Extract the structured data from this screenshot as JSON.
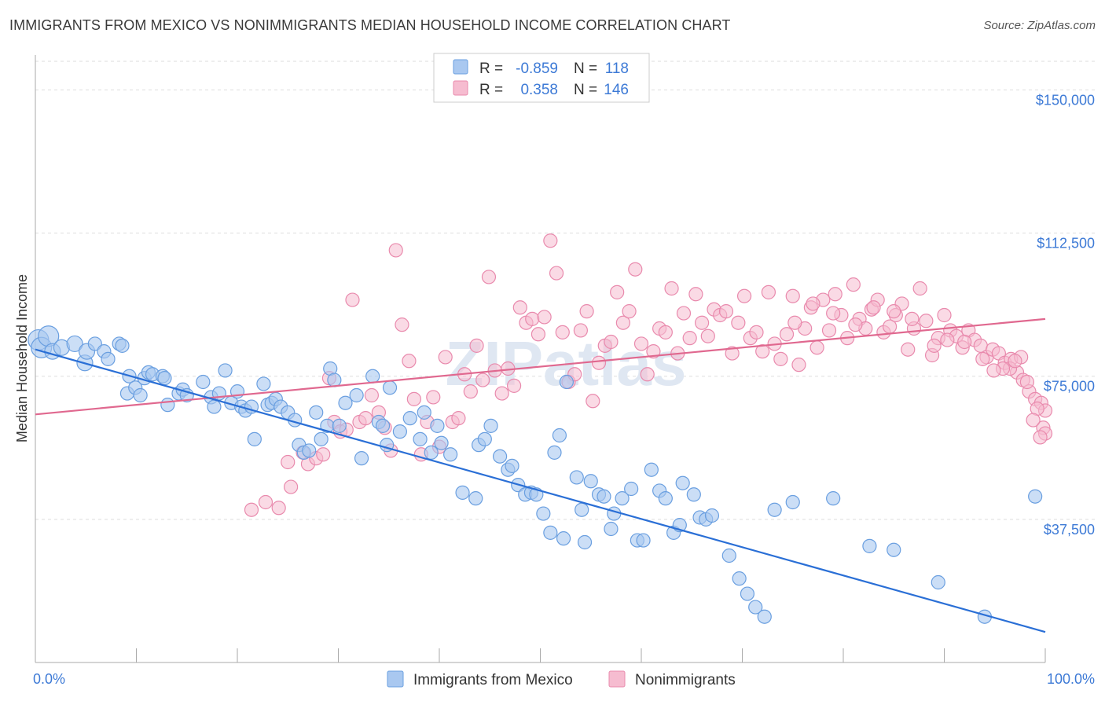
{
  "title": "IMMIGRANTS FROM MEXICO VS NONIMMIGRANTS MEDIAN HOUSEHOLD INCOME CORRELATION CHART",
  "source": "Source: ZipAtlas.com",
  "watermark": "ZIPatlas",
  "colors": {
    "blue_fill": "#a9c8f0",
    "blue_stroke": "#6a9fe0",
    "blue_line": "#2a6fd6",
    "pink_fill": "#f6bcd0",
    "pink_stroke": "#e98aad",
    "pink_line": "#e0688f",
    "tick_text": "#3d7ad6",
    "grid": "#dddddd"
  },
  "legend": {
    "rows": [
      {
        "r_label": "R =",
        "r_value": "-0.859",
        "n_label": "N =",
        "n_value": "118"
      },
      {
        "r_label": "R =",
        "r_value": "0.358",
        "n_label": "N =",
        "n_value": "146"
      }
    ]
  },
  "chart_data": {
    "type": "scatter",
    "title": "IMMIGRANTS FROM MEXICO VS NONIMMIGRANTS MEDIAN HOUSEHOLD INCOME CORRELATION CHART",
    "xlabel": "",
    "ylabel": "Median Household Income",
    "xlim": [
      0,
      100
    ],
    "ylim": [
      0,
      157500
    ],
    "x_tick_labels": [
      "0.0%",
      "100.0%"
    ],
    "y_ticks": [
      37500,
      75000,
      112500,
      150000
    ],
    "y_tick_labels": [
      "$37,500",
      "$75,000",
      "$112,500",
      "$150,000"
    ],
    "grid": true,
    "legend_position": "bottom",
    "series": [
      {
        "name": "Immigrants from Mexico",
        "color": "#a9c8f0",
        "trend": {
          "x": [
            0,
            100
          ],
          "y": [
            82000,
            8000
          ]
        },
        "points": [
          [
            0.3,
            84.5
          ],
          [
            0.6,
            82.5
          ],
          [
            1.3,
            85.5
          ],
          [
            1.7,
            81.5
          ],
          [
            2.6,
            82.5
          ],
          [
            3.9,
            83.5
          ],
          [
            4.9,
            78.5
          ],
          [
            5.1,
            81.5
          ],
          [
            5.9,
            83.5
          ],
          [
            6.8,
            81.5
          ],
          [
            7.2,
            79.5
          ],
          [
            8.3,
            83.5
          ],
          [
            8.6,
            83.0
          ],
          [
            9.1,
            70.5
          ],
          [
            9.3,
            75.0
          ],
          [
            9.9,
            72.0
          ],
          [
            10.4,
            70.0
          ],
          [
            10.8,
            74.5
          ],
          [
            11.2,
            76.0
          ],
          [
            11.6,
            75.5
          ],
          [
            12.6,
            75.0
          ],
          [
            12.8,
            74.5
          ],
          [
            13.1,
            67.5
          ],
          [
            14.2,
            70.5
          ],
          [
            14.6,
            71.5
          ],
          [
            15.0,
            70.0
          ],
          [
            16.6,
            73.5
          ],
          [
            17.4,
            69.5
          ],
          [
            17.7,
            67.0
          ],
          [
            18.2,
            70.5
          ],
          [
            18.8,
            76.5
          ],
          [
            19.4,
            68.0
          ],
          [
            20.0,
            71.0
          ],
          [
            20.4,
            67.0
          ],
          [
            20.8,
            66.0
          ],
          [
            21.4,
            67.0
          ],
          [
            21.7,
            58.5
          ],
          [
            22.6,
            73.0
          ],
          [
            23.0,
            67.5
          ],
          [
            23.4,
            68.0
          ],
          [
            23.8,
            69.0
          ],
          [
            24.3,
            67.0
          ],
          [
            25.0,
            65.5
          ],
          [
            25.7,
            63.5
          ],
          [
            26.1,
            57.0
          ],
          [
            26.6,
            55.0
          ],
          [
            27.1,
            55.5
          ],
          [
            27.8,
            65.5
          ],
          [
            28.3,
            58.5
          ],
          [
            28.9,
            62.0
          ],
          [
            29.2,
            77.0
          ],
          [
            29.6,
            74.0
          ],
          [
            30.1,
            62.0
          ],
          [
            30.7,
            68.0
          ],
          [
            31.8,
            70.0
          ],
          [
            32.3,
            53.5
          ],
          [
            33.4,
            75.0
          ],
          [
            34.0,
            63.0
          ],
          [
            34.4,
            62.0
          ],
          [
            34.8,
            57.0
          ],
          [
            35.1,
            72.0
          ],
          [
            36.1,
            60.5
          ],
          [
            37.1,
            64.0
          ],
          [
            38.1,
            58.5
          ],
          [
            38.5,
            65.5
          ],
          [
            39.2,
            55.0
          ],
          [
            39.8,
            62.0
          ],
          [
            40.2,
            57.5
          ],
          [
            41.1,
            54.5
          ],
          [
            42.3,
            44.5
          ],
          [
            43.6,
            43.0
          ],
          [
            43.9,
            57.0
          ],
          [
            44.5,
            58.5
          ],
          [
            45.1,
            62.0
          ],
          [
            46.0,
            54.0
          ],
          [
            46.8,
            50.5
          ],
          [
            47.2,
            51.5
          ],
          [
            47.8,
            46.5
          ],
          [
            48.5,
            44.0
          ],
          [
            49.1,
            44.5
          ],
          [
            49.6,
            44.0
          ],
          [
            50.3,
            39.0
          ],
          [
            51.0,
            34.0
          ],
          [
            51.4,
            55.0
          ],
          [
            51.9,
            59.5
          ],
          [
            52.3,
            32.5
          ],
          [
            52.6,
            73.5
          ],
          [
            53.6,
            48.5
          ],
          [
            54.1,
            40.0
          ],
          [
            54.4,
            31.5
          ],
          [
            55.0,
            47.5
          ],
          [
            55.8,
            44.0
          ],
          [
            56.3,
            43.5
          ],
          [
            57.0,
            35.0
          ],
          [
            57.3,
            39.0
          ],
          [
            58.1,
            43.0
          ],
          [
            59.0,
            45.5
          ],
          [
            59.6,
            32.0
          ],
          [
            60.2,
            32.0
          ],
          [
            61.0,
            50.5
          ],
          [
            61.8,
            45.0
          ],
          [
            62.4,
            43.0
          ],
          [
            63.2,
            34.0
          ],
          [
            63.8,
            36.0
          ],
          [
            64.1,
            47.0
          ],
          [
            65.2,
            44.0
          ],
          [
            65.8,
            38.0
          ],
          [
            66.4,
            37.5
          ],
          [
            67.0,
            38.5
          ],
          [
            68.7,
            28.0
          ],
          [
            69.7,
            22.0
          ],
          [
            70.5,
            18.0
          ],
          [
            71.3,
            14.5
          ],
          [
            72.2,
            12.0
          ],
          [
            73.2,
            40.0
          ],
          [
            75.0,
            42.0
          ],
          [
            79.0,
            43.0
          ],
          [
            82.6,
            30.5
          ],
          [
            85.0,
            29.5
          ],
          [
            89.4,
            21.0
          ],
          [
            94.0,
            12.0
          ],
          [
            99.0,
            43.5
          ]
        ]
      },
      {
        "name": "Nonimmigrants",
        "color": "#f6bcd0",
        "trend": {
          "x": [
            0,
            100
          ],
          "y": [
            65000,
            90000
          ]
        },
        "points": [
          [
            21.4,
            40.0
          ],
          [
            22.8,
            42.0
          ],
          [
            24.1,
            40.5
          ],
          [
            25.0,
            52.5
          ],
          [
            25.3,
            46.0
          ],
          [
            26.5,
            55.0
          ],
          [
            27.0,
            52.0
          ],
          [
            27.8,
            53.5
          ],
          [
            28.5,
            54.5
          ],
          [
            29.1,
            74.5
          ],
          [
            29.6,
            63.0
          ],
          [
            30.2,
            60.5
          ],
          [
            30.8,
            61.0
          ],
          [
            31.4,
            95.0
          ],
          [
            32.1,
            63.0
          ],
          [
            32.7,
            64.0
          ],
          [
            33.3,
            70.0
          ],
          [
            34.0,
            65.5
          ],
          [
            34.6,
            61.5
          ],
          [
            35.2,
            55.5
          ],
          [
            35.7,
            108.0
          ],
          [
            36.3,
            88.5
          ],
          [
            37.0,
            79.0
          ],
          [
            37.5,
            69.0
          ],
          [
            38.2,
            54.5
          ],
          [
            38.8,
            63.0
          ],
          [
            39.4,
            69.5
          ],
          [
            40.0,
            56.5
          ],
          [
            40.6,
            80.0
          ],
          [
            41.3,
            63.0
          ],
          [
            41.9,
            64.0
          ],
          [
            42.5,
            75.5
          ],
          [
            43.1,
            71.0
          ],
          [
            43.7,
            83.0
          ],
          [
            44.3,
            74.0
          ],
          [
            44.9,
            101.0
          ],
          [
            45.5,
            76.5
          ],
          [
            46.2,
            70.5
          ],
          [
            46.8,
            77.0
          ],
          [
            47.4,
            72.5
          ],
          [
            48.0,
            93.0
          ],
          [
            48.6,
            89.0
          ],
          [
            49.2,
            90.0
          ],
          [
            49.8,
            86.0
          ],
          [
            50.4,
            90.5
          ],
          [
            51.0,
            110.5
          ],
          [
            51.6,
            102.0
          ],
          [
            52.2,
            86.5
          ],
          [
            52.8,
            73.5
          ],
          [
            53.4,
            75.5
          ],
          [
            54.0,
            87.0
          ],
          [
            54.6,
            92.0
          ],
          [
            55.2,
            68.5
          ],
          [
            55.8,
            78.5
          ],
          [
            56.4,
            83.0
          ],
          [
            57.0,
            84.0
          ],
          [
            57.6,
            97.0
          ],
          [
            58.2,
            89.0
          ],
          [
            58.8,
            92.0
          ],
          [
            59.4,
            103.0
          ],
          [
            60.0,
            83.5
          ],
          [
            60.6,
            75.5
          ],
          [
            61.2,
            81.5
          ],
          [
            61.8,
            87.5
          ],
          [
            62.4,
            86.5
          ],
          [
            63.0,
            98.0
          ],
          [
            63.6,
            81.0
          ],
          [
            64.2,
            91.5
          ],
          [
            64.8,
            85.0
          ],
          [
            65.4,
            96.5
          ],
          [
            66.0,
            89.0
          ],
          [
            66.6,
            85.5
          ],
          [
            67.2,
            92.5
          ],
          [
            67.8,
            91.0
          ],
          [
            68.4,
            92.0
          ],
          [
            69.0,
            81.0
          ],
          [
            69.6,
            89.0
          ],
          [
            70.2,
            96.0
          ],
          [
            70.8,
            85.0
          ],
          [
            71.4,
            86.5
          ],
          [
            72.0,
            81.5
          ],
          [
            72.6,
            97.0
          ],
          [
            73.2,
            83.5
          ],
          [
            73.8,
            79.5
          ],
          [
            74.4,
            86.0
          ],
          [
            75.0,
            96.0
          ],
          [
            75.6,
            78.0
          ],
          [
            76.2,
            87.5
          ],
          [
            76.8,
            93.0
          ],
          [
            77.4,
            82.5
          ],
          [
            78.0,
            95.0
          ],
          [
            78.6,
            87.0
          ],
          [
            79.2,
            96.5
          ],
          [
            79.8,
            91.0
          ],
          [
            80.4,
            85.0
          ],
          [
            81.0,
            99.0
          ],
          [
            81.6,
            90.0
          ],
          [
            82.2,
            87.5
          ],
          [
            82.8,
            92.5
          ],
          [
            83.4,
            95.0
          ],
          [
            84.0,
            86.5
          ],
          [
            84.6,
            88.0
          ],
          [
            85.2,
            91.0
          ],
          [
            85.8,
            94.0
          ],
          [
            86.4,
            82.0
          ],
          [
            87.0,
            87.5
          ],
          [
            87.6,
            98.0
          ],
          [
            88.2,
            89.5
          ],
          [
            88.8,
            80.5
          ],
          [
            89.4,
            85.0
          ],
          [
            90.0,
            91.0
          ],
          [
            90.6,
            87.0
          ],
          [
            91.2,
            85.5
          ],
          [
            91.8,
            82.5
          ],
          [
            92.4,
            87.0
          ],
          [
            93.0,
            84.5
          ],
          [
            93.6,
            83.0
          ],
          [
            94.2,
            80.0
          ],
          [
            94.8,
            82.0
          ],
          [
            95.4,
            81.0
          ],
          [
            96.0,
            78.5
          ],
          [
            96.6,
            79.5
          ],
          [
            97.2,
            76.0
          ],
          [
            97.8,
            74.0
          ],
          [
            98.4,
            71.0
          ],
          [
            99.0,
            69.0
          ],
          [
            99.6,
            68.0
          ],
          [
            100.0,
            66.0
          ],
          [
            96.5,
            77.0
          ],
          [
            95.8,
            77.0
          ],
          [
            94.9,
            76.5
          ],
          [
            97.6,
            80.0
          ],
          [
            98.2,
            73.5
          ],
          [
            99.2,
            66.5
          ],
          [
            99.8,
            61.5
          ],
          [
            100.0,
            60.0
          ],
          [
            99.5,
            59.0
          ],
          [
            98.8,
            63.5
          ],
          [
            97.0,
            79.0
          ],
          [
            93.8,
            79.5
          ],
          [
            92.0,
            84.0
          ],
          [
            90.3,
            84.5
          ],
          [
            89.0,
            83.0
          ],
          [
            86.8,
            90.0
          ],
          [
            85.0,
            92.0
          ],
          [
            83.0,
            93.0
          ],
          [
            81.2,
            88.5
          ],
          [
            79.0,
            91.5
          ],
          [
            77.0,
            94.0
          ],
          [
            75.2,
            89.0
          ]
        ]
      }
    ]
  },
  "bottom_legend": [
    {
      "label": "Immigrants from Mexico"
    },
    {
      "label": "Nonimmigrants"
    }
  ]
}
